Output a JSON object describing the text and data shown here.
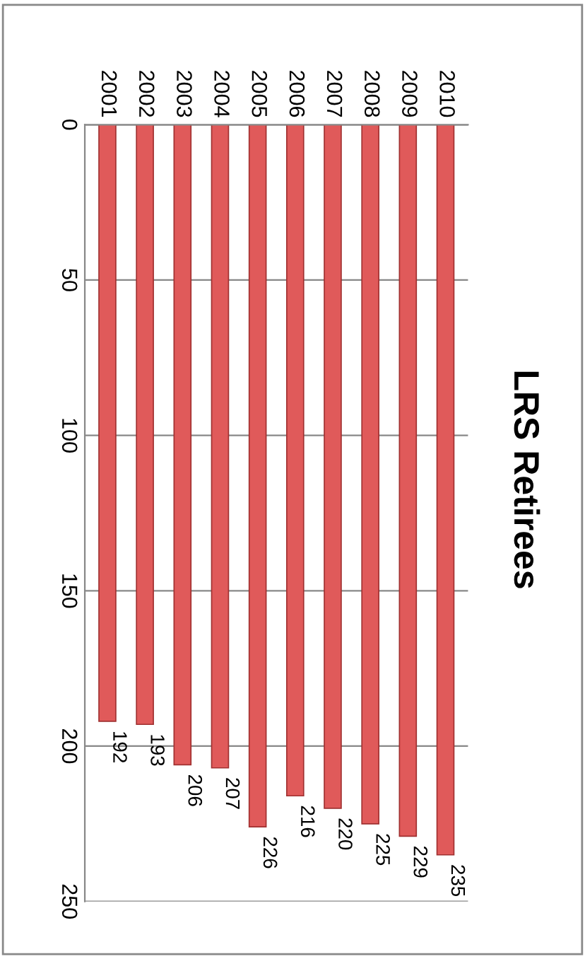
{
  "chart_data": {
    "type": "bar",
    "title": "LRS Retirees",
    "categories": [
      "2001",
      "2002",
      "2003",
      "2004",
      "2005",
      "2006",
      "2007",
      "2008",
      "2009",
      "2010"
    ],
    "values": [
      192,
      193,
      206,
      207,
      226,
      216,
      220,
      225,
      229,
      235
    ],
    "color": "#e05a5a",
    "ylim": [
      250,
      0
    ],
    "yticks": [
      0,
      50,
      100,
      150,
      200,
      250
    ],
    "grid": "y",
    "data_labels": true
  }
}
